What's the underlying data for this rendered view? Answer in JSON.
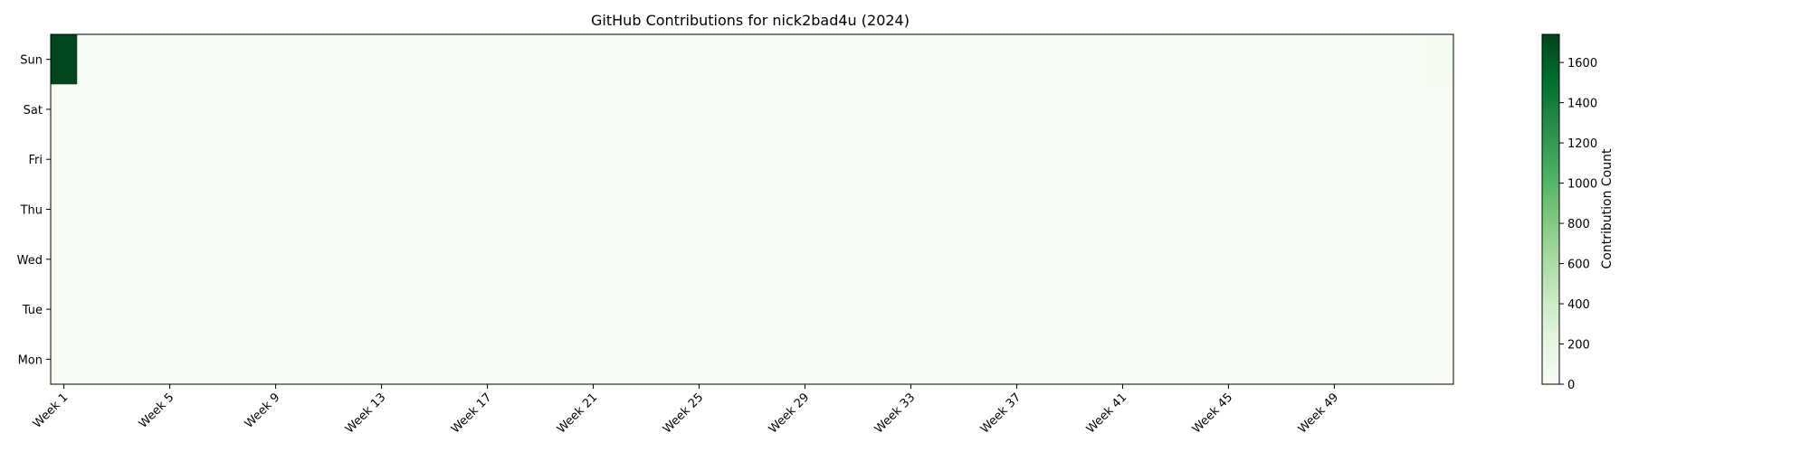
{
  "chart_data": {
    "type": "heatmap",
    "title": "GitHub Contributions for nick2bad4u (2024)",
    "xlabel": "",
    "ylabel": "",
    "rows": [
      "Sun",
      "Sat",
      "Fri",
      "Thu",
      "Wed",
      "Tue",
      "Mon"
    ],
    "num_weeks": 53,
    "x_tick_labels": [
      "Week 1",
      "Week 5",
      "Week 9",
      "Week 13",
      "Week 17",
      "Week 21",
      "Week 25",
      "Week 29",
      "Week 33",
      "Week 37",
      "Week 41",
      "Week 45",
      "Week 49"
    ],
    "x_tick_weeks": [
      1,
      5,
      9,
      13,
      17,
      21,
      25,
      29,
      33,
      37,
      41,
      45,
      49
    ],
    "default_value": 0,
    "nonzero_cells": [
      {
        "row": "Sun",
        "week": 1,
        "value": 1730
      },
      {
        "row": "Sun",
        "week": 53,
        "value": 40
      }
    ],
    "colorbar": {
      "label": "Contribution Count",
      "min": 0,
      "max": 1740,
      "ticks": [
        0,
        200,
        400,
        600,
        800,
        1000,
        1200,
        1400,
        1600
      ],
      "colormap": "Greens",
      "low_color": "#f7fcf5",
      "high_color": "#00441b"
    },
    "grid": false,
    "legend": "colorbar-right"
  }
}
